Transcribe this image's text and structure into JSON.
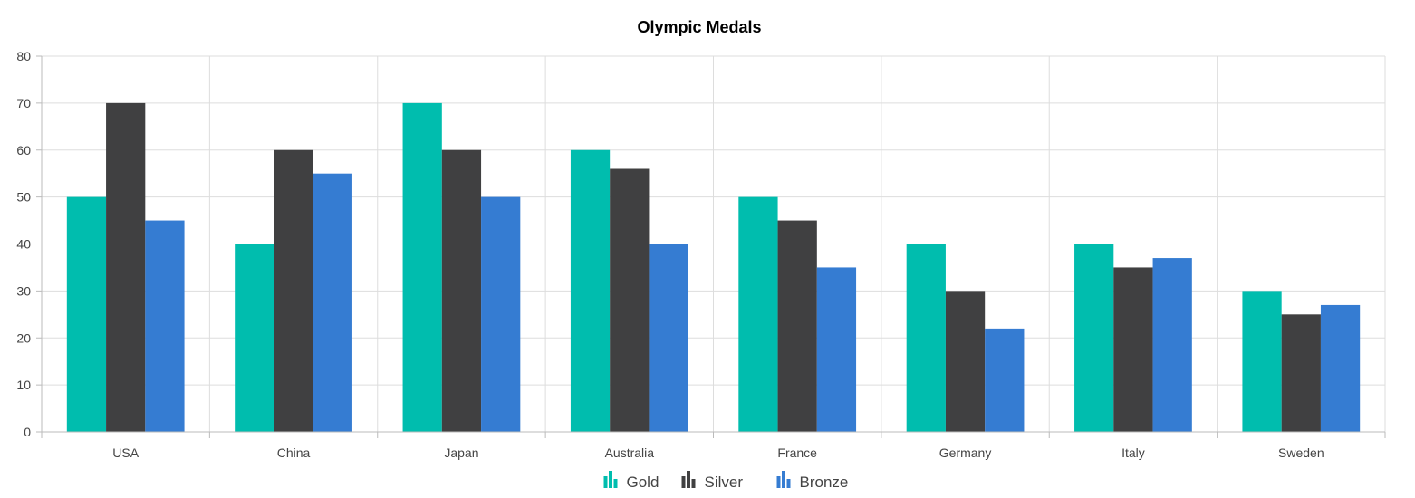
{
  "chart_data": {
    "type": "bar",
    "title": "Olympic Medals",
    "xlabel": "",
    "ylabel": "",
    "categories": [
      "USA",
      "China",
      "Japan",
      "Australia",
      "France",
      "Germany",
      "Italy",
      "Sweden"
    ],
    "series": [
      {
        "name": "Gold",
        "color": "#00BDAE",
        "values": [
          50,
          40,
          70,
          60,
          50,
          40,
          40,
          30
        ]
      },
      {
        "name": "Silver",
        "color": "#404041",
        "values": [
          70,
          60,
          60,
          56,
          45,
          30,
          35,
          25
        ]
      },
      {
        "name": "Bronze",
        "color": "#357CD2",
        "values": [
          45,
          55,
          50,
          40,
          35,
          22,
          37,
          27
        ]
      }
    ],
    "ylim": [
      0,
      80
    ],
    "yticks": [
      0,
      10,
      20,
      30,
      40,
      50,
      60,
      70,
      80
    ],
    "grid": true,
    "legend_position": "bottom-center"
  }
}
